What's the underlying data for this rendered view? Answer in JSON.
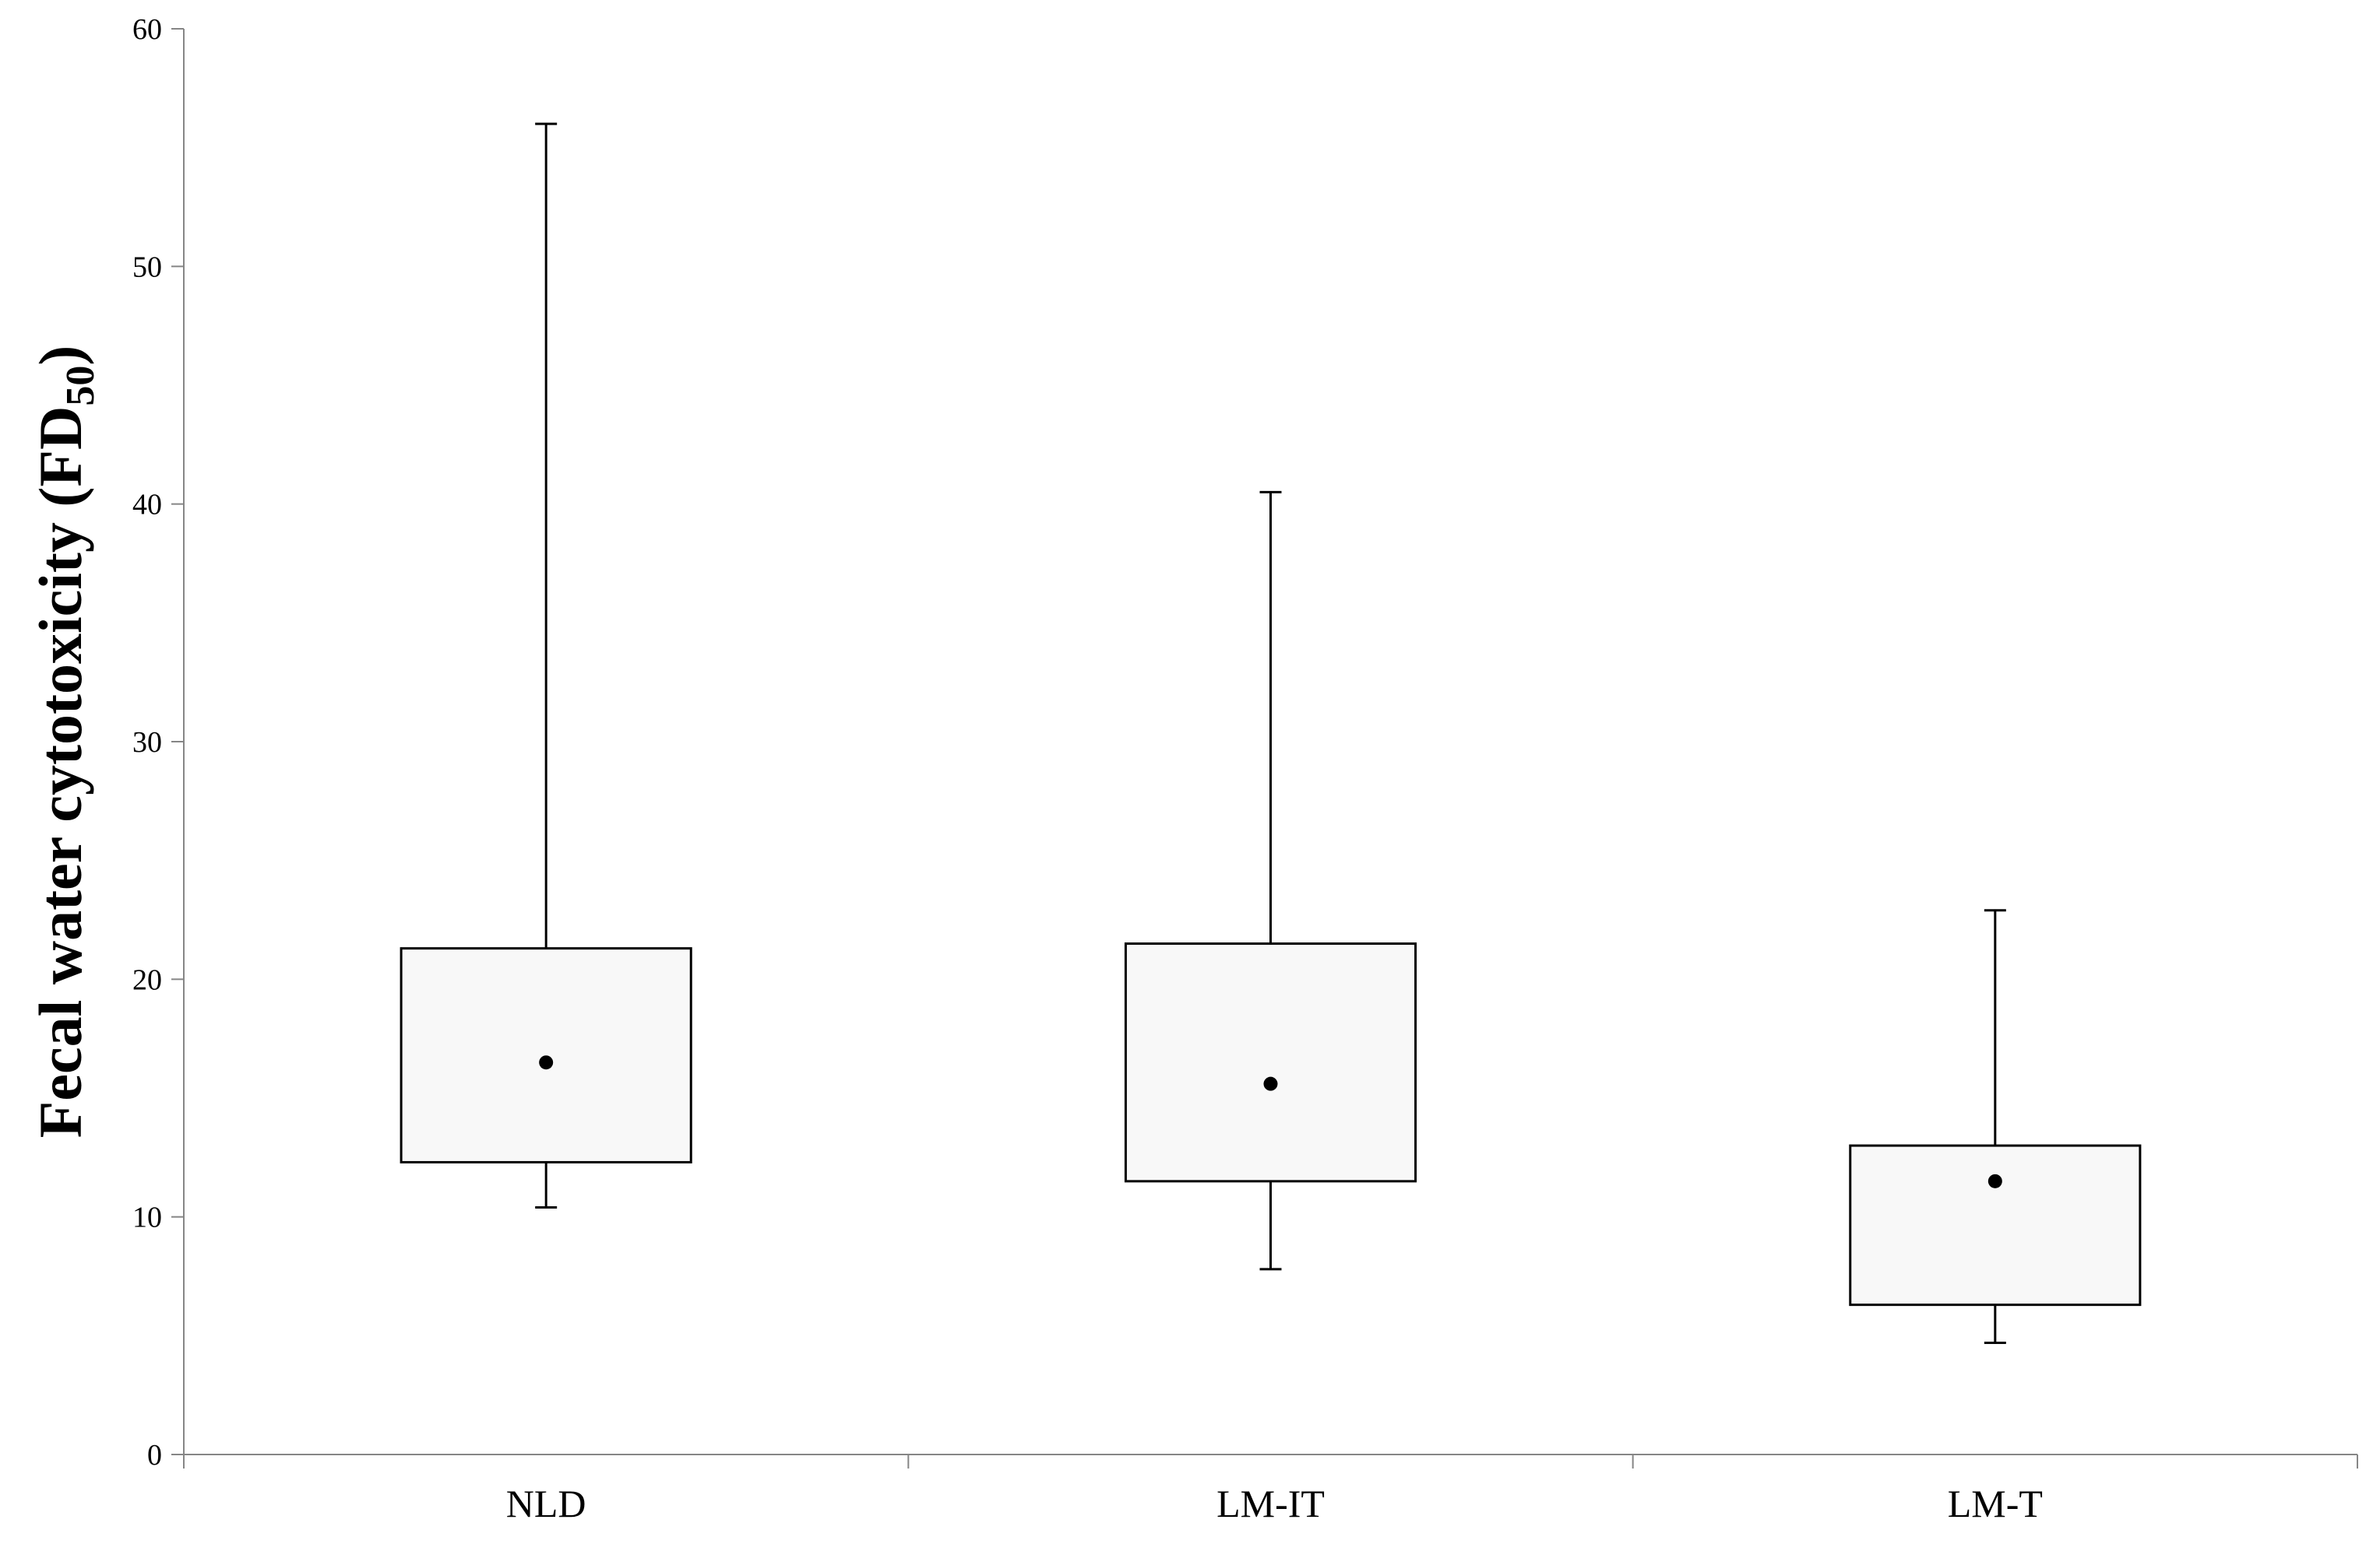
{
  "chart_data": {
    "type": "box",
    "ylabel": [
      "Fecal water cytotoxicity (FD",
      "50",
      ")"
    ],
    "categories": [
      "NLD",
      "LM-IT",
      "LM-T"
    ],
    "min": [
      10.4,
      7.8,
      4.7
    ],
    "q1": [
      12.3,
      11.5,
      6.3
    ],
    "median": [
      16.5,
      15.6,
      11.5
    ],
    "q3": [
      21.3,
      21.5,
      13.0
    ],
    "max": [
      56.0,
      40.5,
      22.9
    ],
    "box_color": "#f8f8f8",
    "ylim": [
      0,
      60
    ],
    "yticks": [
      0,
      10,
      20,
      30,
      40,
      50,
      60
    ],
    "grid": false
  }
}
